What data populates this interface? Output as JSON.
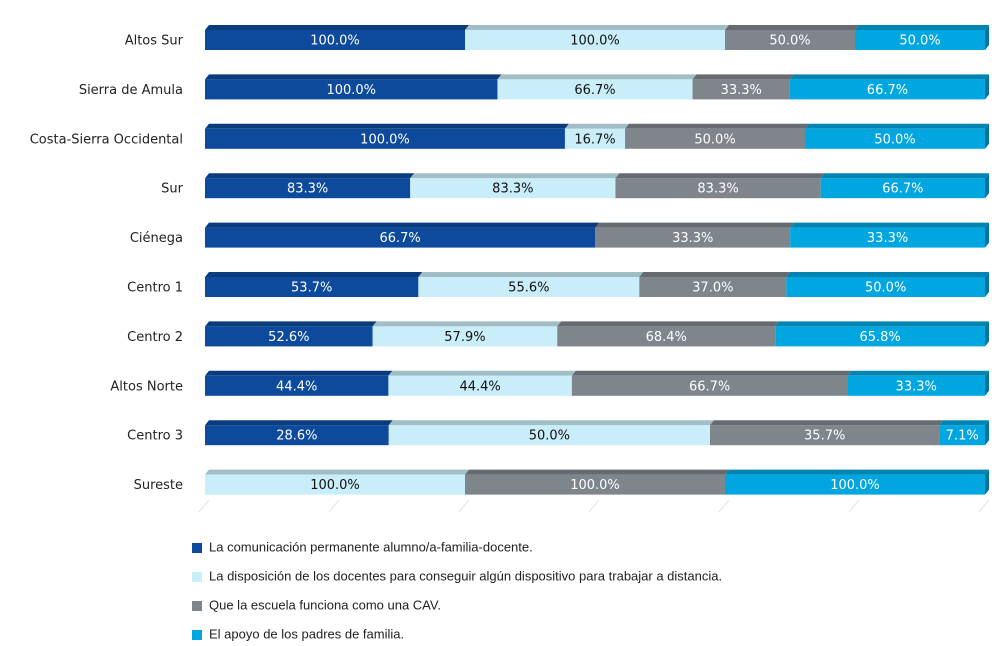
{
  "chart_data": {
    "type": "bar",
    "orientation": "horizontal",
    "stacking": "percent",
    "categories": [
      "Altos Sur",
      "Sierra de Amula",
      "Costa-Sierra Occidental",
      "Sur",
      "Ciénega",
      "Centro 1",
      "Centro 2",
      "Altos Norte",
      "Centro 3",
      "Sureste"
    ],
    "series": [
      {
        "name": "La comunicación permanente alumno/a-familia-docente.",
        "color": "#0d4a9c",
        "values": [
          100,
          100,
          100,
          83.3,
          66.7,
          53.7,
          52.6,
          44.4,
          28.6,
          null
        ],
        "value_labels": [
          "100.0%",
          "100.0%",
          "100.0%",
          "83.3%",
          "66.7%",
          "53.7%",
          "52.6%",
          "44.4%",
          "28.6%",
          null
        ]
      },
      {
        "name": "La disposición de los docentes para conseguir algún dispositivo para trabajar a distancia.",
        "color": "#c9edf9",
        "values": [
          100,
          66.7,
          16.7,
          83.3,
          null,
          55.6,
          57.9,
          44.4,
          50,
          100
        ],
        "value_labels": [
          "100.0%",
          "66.7%",
          "16.7%",
          "83.3%",
          null,
          "55.6%",
          "57.9%",
          "44.4%",
          "50.0%",
          "100.0%"
        ]
      },
      {
        "name": "Que la escuela funciona como una CAV.",
        "color": "#7e868c",
        "values": [
          50,
          33.3,
          50,
          83.3,
          33.3,
          37,
          68.4,
          66.7,
          35.7,
          100
        ],
        "value_labels": [
          "50.0%",
          "33.3%",
          "50.0%",
          "83.3%",
          "33.3%",
          "37.0%",
          "68.4%",
          "66.7%",
          "35.7%",
          "100.0%"
        ]
      },
      {
        "name": "El apoyo de los padres de familia.",
        "color": "#00a6e0",
        "values": [
          50,
          66.7,
          50,
          66.7,
          33.3,
          50,
          65.8,
          33.3,
          7.1,
          100
        ],
        "value_labels": [
          "50.0%",
          "66.7%",
          "50.0%",
          "66.7%",
          "33.3%",
          "50.0%",
          "65.8%",
          "33.3%",
          "7.1%",
          "100.0%"
        ]
      }
    ],
    "label_colors": [
      "#ffffff",
      "#111111",
      "#ffffff",
      "#ffffff"
    ]
  }
}
